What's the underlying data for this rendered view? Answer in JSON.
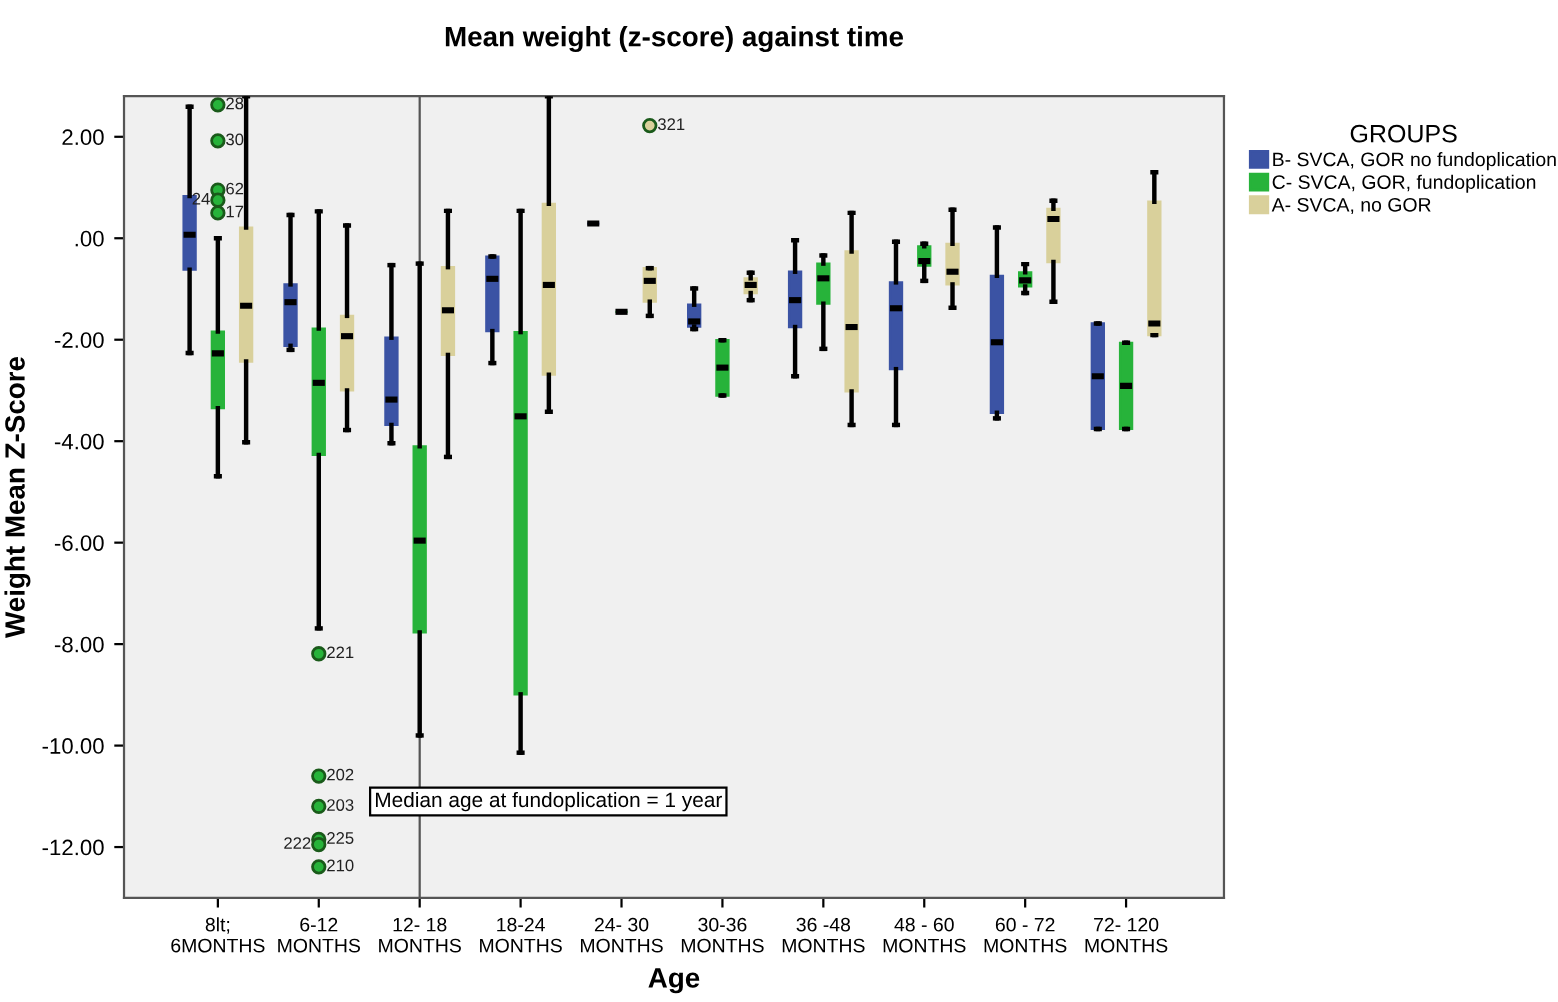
{
  "chart_data": {
    "type": "box",
    "title": "Mean weight (z-score) against time",
    "xlabel": "Age",
    "ylabel": "Weight Mean Z-Score",
    "legend_title": "GROUPS",
    "legend": "top right",
    "categories": [
      "8lt;\n6MONTHS",
      "6-12\nMONTHS",
      "12- 18\nMONTHS",
      "18-24\nMONTHS",
      "24- 30\nMONTHS",
      "30-36\nMONTHS",
      "36 -48\nMONTHS",
      "48 - 60\nMONTHS",
      "60 - 72\nMONTHS",
      "72- 120\nMONTHS"
    ],
    "ylim": [
      -13,
      2.8
    ],
    "yticks": [
      {
        "value": 2,
        "label": "2.00"
      },
      {
        "value": 0,
        "label": ".00"
      },
      {
        "value": -2,
        "label": "-2.00"
      },
      {
        "value": -4,
        "label": "-4.00"
      },
      {
        "value": -6,
        "label": "-6.00"
      },
      {
        "value": -8,
        "label": "-8.00"
      },
      {
        "value": -10,
        "label": "-10.00"
      },
      {
        "value": -12,
        "label": "-12.00"
      }
    ],
    "series": [
      {
        "name": "B- SVCA, GOR no fundoplication",
        "color": "#3b53a4",
        "boxes": [
          {
            "low": -2.26,
            "q1": -0.62,
            "median": 0.07,
            "q3": 0.83,
            "high": 2.59
          },
          {
            "low": -2.2,
            "q1": -2.12,
            "median": -1.26,
            "q3": -0.91,
            "high": 0.46
          },
          {
            "low": -4.04,
            "q1": -3.68,
            "median": -3.18,
            "q3": -1.96,
            "high": -0.53
          },
          {
            "low": -2.46,
            "q1": -1.83,
            "median": -0.8,
            "q3": -0.36,
            "high": -0.36
          },
          {
            "low": 0.29,
            "q1": 0.29,
            "median": 0.29,
            "q3": 0.29,
            "high": 0.29
          },
          {
            "low": -1.79,
            "q1": -1.74,
            "median": -1.64,
            "q3": -1.31,
            "high": -0.99
          },
          {
            "low": -2.72,
            "q1": -1.75,
            "median": -1.22,
            "q3": -0.66,
            "high": -0.04
          },
          {
            "low": -3.68,
            "q1": -2.58,
            "median": -1.38,
            "q3": -0.87,
            "high": -0.07
          },
          {
            "low": -3.55,
            "q1": -3.44,
            "median": -2.05,
            "q3": -0.74,
            "high": 0.21
          },
          {
            "low": -3.76,
            "q1": -3.76,
            "median": -2.72,
            "q3": -1.68,
            "high": -1.68
          }
        ]
      },
      {
        "name": "C- SVCA, GOR, fundoplication",
        "color": "#27b33a",
        "boxes": [
          {
            "low": -4.69,
            "q1": -3.35,
            "median": -2.27,
            "q3": -1.84,
            "high": 0.0,
            "outliers": [
              2.63,
              1.92,
              0.95,
              0.75,
              0.5
            ]
          },
          {
            "low": -7.69,
            "q1": -4.27,
            "median": -2.85,
            "q3": -1.78,
            "high": 0.53,
            "outliers": [
              -8.19,
              -10.6,
              -11.2,
              -11.85,
              -11.95,
              -12.39
            ]
          },
          {
            "low": -9.8,
            "q1": -7.77,
            "median": -5.96,
            "q3": -4.1,
            "high": -0.5
          },
          {
            "low": -10.14,
            "q1": -8.99,
            "median": -3.51,
            "q3": -1.85,
            "high": 0.54
          },
          {
            "low": -1.45,
            "q1": -1.45,
            "median": -1.45,
            "q3": -1.45,
            "high": -1.45
          },
          {
            "low": -3.1,
            "q1": -3.1,
            "median": -2.55,
            "q3": -2.01,
            "high": -2.01
          },
          {
            "low": -2.18,
            "q1": -1.29,
            "median": -0.79,
            "q3": -0.5,
            "high": -0.34
          },
          {
            "low": -0.84,
            "q1": -0.54,
            "median": -0.45,
            "q3": -0.16,
            "high": -0.11
          },
          {
            "low": -1.08,
            "q1": -0.95,
            "median": -0.83,
            "q3": -0.67,
            "high": -0.51
          },
          {
            "low": -3.76,
            "q1": -3.76,
            "median": -2.91,
            "q3": -2.06,
            "high": -2.06
          }
        ]
      },
      {
        "name": "A- SVCA, no GOR",
        "color": "#d9d09b",
        "boxes": [
          {
            "low": -4.02,
            "q1": -2.43,
            "median": -1.33,
            "q3": 0.21,
            "high": 2.8
          },
          {
            "low": -3.78,
            "q1": -3.0,
            "median": -1.93,
            "q3": -1.53,
            "high": 0.25
          },
          {
            "low": -4.31,
            "q1": -2.3,
            "median": -1.42,
            "q3": -0.57,
            "high": 0.54
          },
          {
            "low": -3.42,
            "q1": -2.69,
            "median": -0.92,
            "q3": 0.68,
            "high": 2.8
          },
          {
            "low": -1.53,
            "q1": -1.25,
            "median": -0.84,
            "q3": -0.59,
            "high": -0.59,
            "outliers": [
              2.22
            ]
          },
          {
            "low": -1.22,
            "q1": -1.08,
            "median": -0.92,
            "q3": -0.79,
            "high": -0.68
          },
          {
            "low": -3.68,
            "q1": -3.02,
            "median": -1.75,
            "q3": -0.26,
            "high": 0.5
          },
          {
            "low": -1.37,
            "q1": -0.91,
            "median": -0.66,
            "q3": -0.11,
            "high": 0.56
          },
          {
            "low": -1.25,
            "q1": -0.47,
            "median": 0.38,
            "q3": 0.58,
            "high": 0.74
          },
          {
            "low": -1.91,
            "q1": -1.91,
            "median": -1.68,
            "q3": 0.72,
            "high": 1.3
          }
        ]
      }
    ],
    "ref_lines": [
      {
        "axis": "x",
        "value": "12- 18\nMONTHS",
        "label": "Median age at fundoplication = 1 year",
        "color": "#555555"
      }
    ],
    "annotations": [
      "28",
      "30",
      "62",
      "24",
      "17",
      "221",
      "202",
      "203",
      "225",
      "222",
      "210",
      "321"
    ]
  }
}
